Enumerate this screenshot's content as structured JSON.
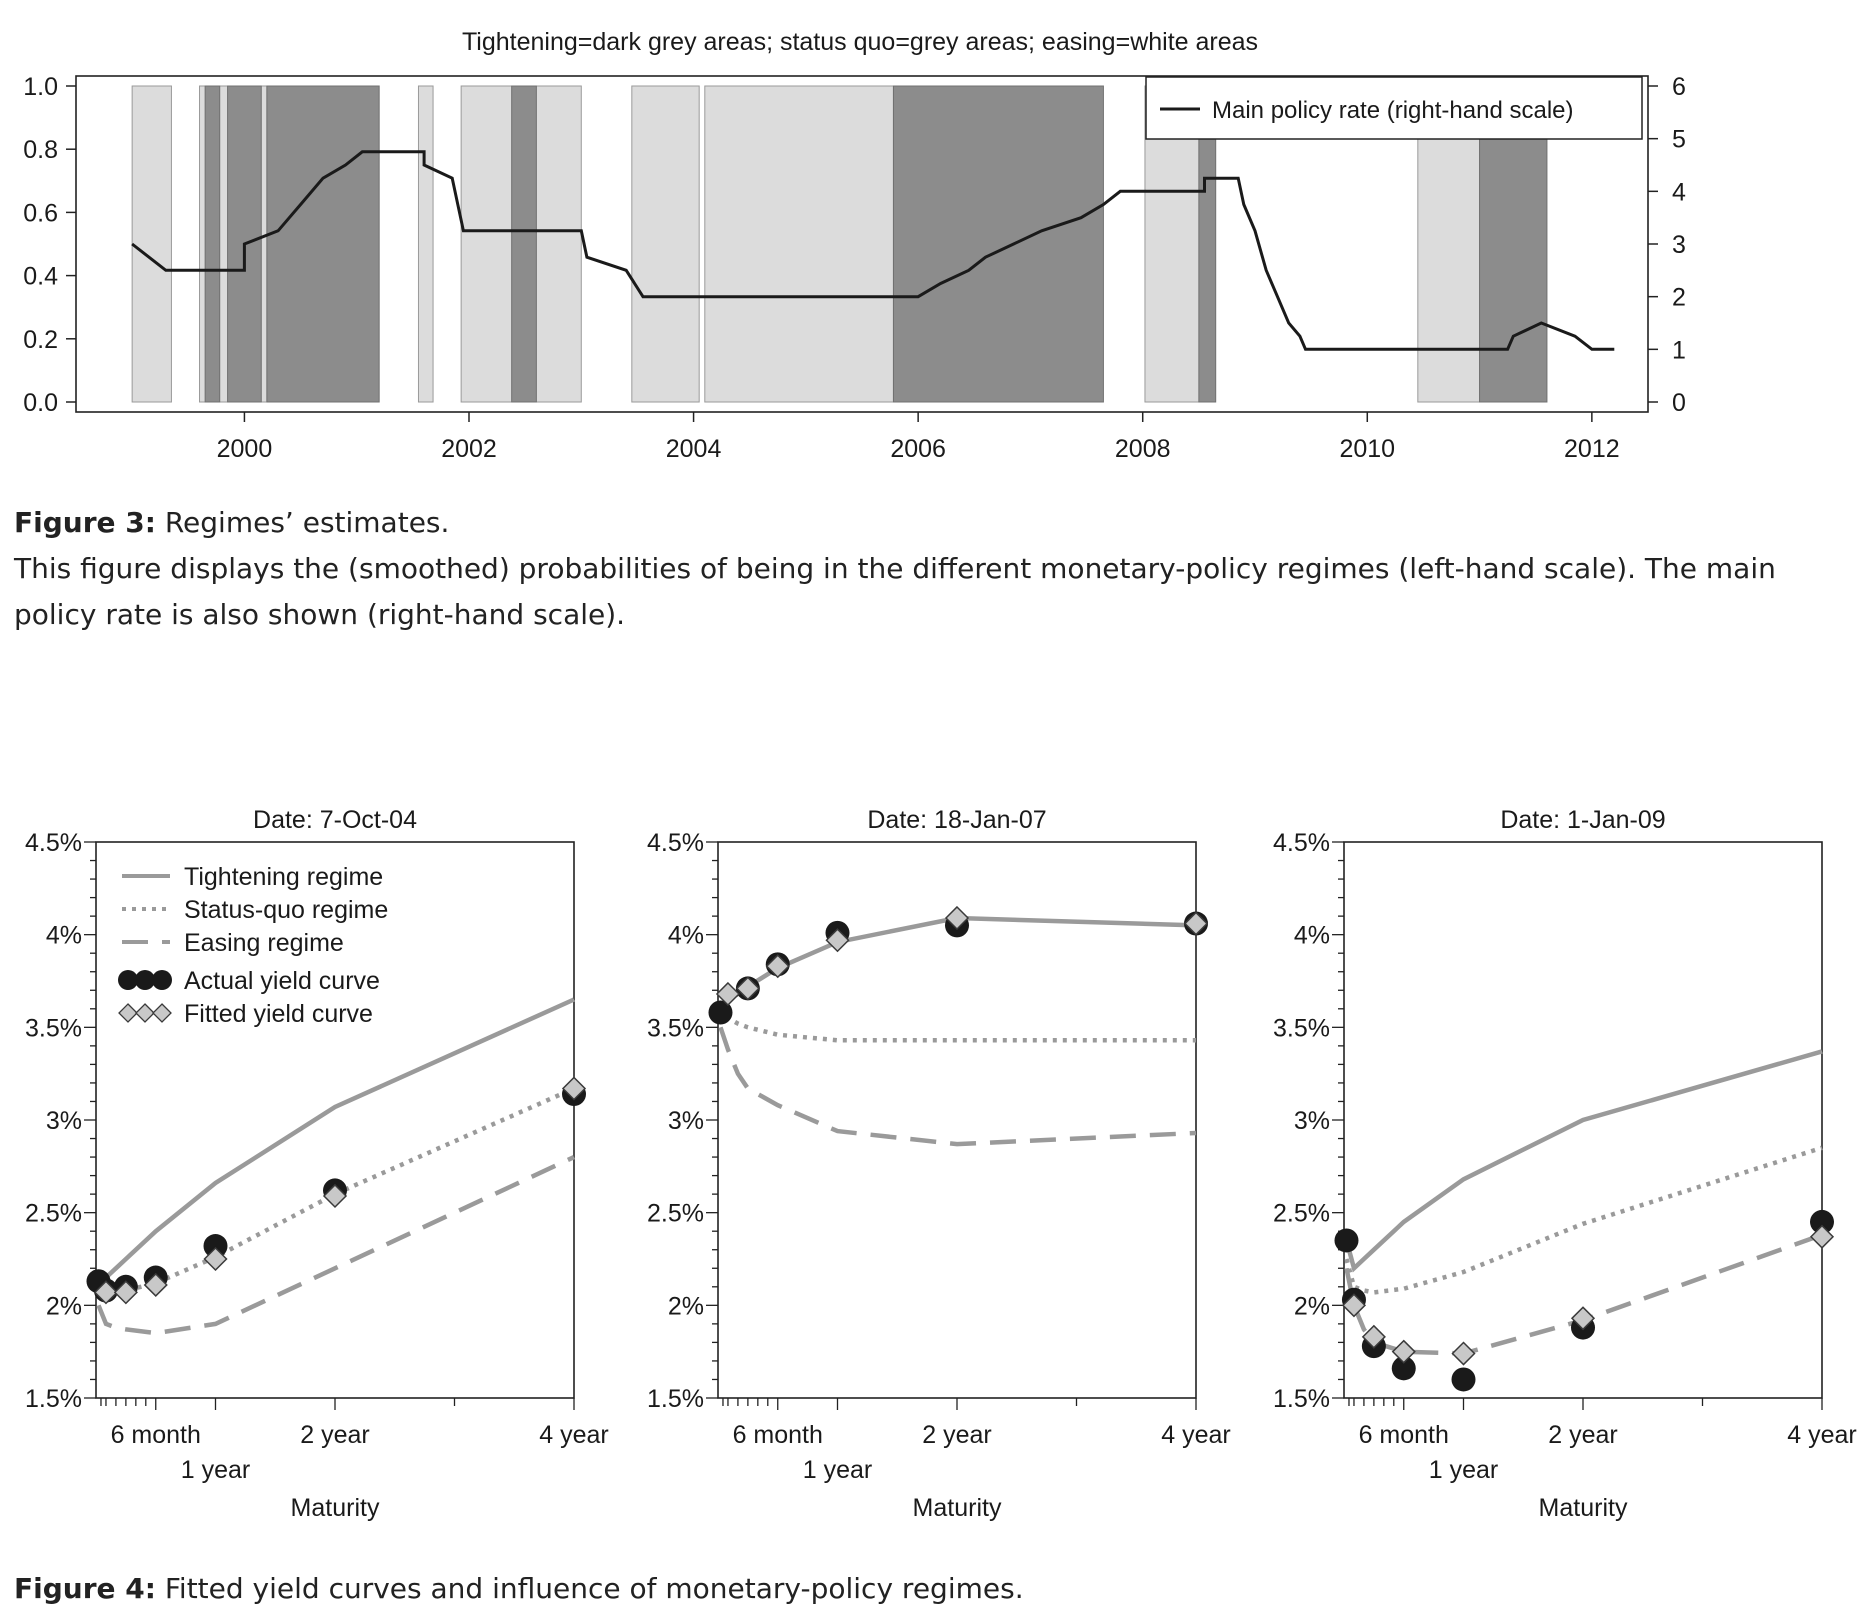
{
  "figure3": {
    "label": "Figure 3:",
    "title": "Regimes’ estimates.",
    "description": "This figure displays the (smoothed) probabilities of being in the different monetary-policy regimes (left-hand scale). The main policy rate is also shown (right-hand scale).",
    "chart_data": {
      "type": "area",
      "title": "Tightening=dark grey areas; status quo=grey areas; easing=white areas",
      "xlim": [
        1998.5,
        2012.5
      ],
      "x_ticks": [
        "2000",
        "2002",
        "2004",
        "2006",
        "2008",
        "2010",
        "2012"
      ],
      "x_tick_values": [
        2000,
        2002,
        2004,
        2006,
        2008,
        2010,
        2012
      ],
      "ylim_left": [
        0,
        1
      ],
      "y_ticks_left": [
        "0.0",
        "0.2",
        "0.4",
        "0.6",
        "0.8",
        "1.0"
      ],
      "ylim_right": [
        0,
        6
      ],
      "y_ticks_right": [
        "0",
        "1",
        "2",
        "3",
        "4",
        "5",
        "6"
      ],
      "legend": {
        "entries": [
          "Main policy rate (right-hand scale)"
        ],
        "position": "top-right"
      },
      "regimes": {
        "status_quo": [
          [
            1999.0,
            1999.35
          ],
          [
            1999.6,
            2000.2
          ],
          [
            2000.25,
            2000.5
          ],
          [
            2001.55,
            2001.68
          ],
          [
            2001.93,
            2002.48
          ],
          [
            2002.48,
            2003.0
          ],
          [
            2003.45,
            2004.05
          ],
          [
            2004.1,
            2005.78
          ],
          [
            2008.02,
            2008.6
          ],
          [
            2010.45,
            2011.0
          ]
        ],
        "tightening": [
          [
            1999.65,
            1999.78
          ],
          [
            1999.85,
            2000.15
          ],
          [
            2000.2,
            2001.2
          ],
          [
            2002.38,
            2002.6
          ],
          [
            2005.78,
            2007.65
          ],
          [
            2008.5,
            2008.65
          ],
          [
            2011.0,
            2011.6
          ]
        ]
      },
      "series": [
        {
          "name": "Main policy rate (right-hand scale)",
          "points": [
            [
              1999.0,
              3.0
            ],
            [
              1999.3,
              2.5
            ],
            [
              2000.0,
              2.5
            ],
            [
              2000.0,
              3.0
            ],
            [
              2000.3,
              3.25
            ],
            [
              2000.4,
              3.5
            ],
            [
              2000.5,
              3.75
            ],
            [
              2000.7,
              4.25
            ],
            [
              2000.9,
              4.5
            ],
            [
              2001.05,
              4.75
            ],
            [
              2001.6,
              4.75
            ],
            [
              2001.6,
              4.5
            ],
            [
              2001.85,
              4.25
            ],
            [
              2001.9,
              3.75
            ],
            [
              2001.95,
              3.25
            ],
            [
              2003.0,
              3.25
            ],
            [
              2003.05,
              2.75
            ],
            [
              2003.4,
              2.5
            ],
            [
              2003.55,
              2.0
            ],
            [
              2006.0,
              2.0
            ],
            [
              2006.2,
              2.25
            ],
            [
              2006.45,
              2.5
            ],
            [
              2006.6,
              2.75
            ],
            [
              2006.85,
              3.0
            ],
            [
              2007.1,
              3.25
            ],
            [
              2007.45,
              3.5
            ],
            [
              2007.65,
              3.75
            ],
            [
              2007.8,
              4.0
            ],
            [
              2008.55,
              4.0
            ],
            [
              2008.55,
              4.25
            ],
            [
              2008.85,
              4.25
            ],
            [
              2008.9,
              3.75
            ],
            [
              2009.0,
              3.25
            ],
            [
              2009.1,
              2.5
            ],
            [
              2009.2,
              2.0
            ],
            [
              2009.3,
              1.5
            ],
            [
              2009.4,
              1.25
            ],
            [
              2009.45,
              1.0
            ],
            [
              2011.25,
              1.0
            ],
            [
              2011.3,
              1.25
            ],
            [
              2011.55,
              1.5
            ],
            [
              2011.85,
              1.25
            ],
            [
              2012.0,
              1.0
            ],
            [
              2012.2,
              1.0
            ]
          ]
        }
      ]
    }
  },
  "figure4": {
    "label": "Figure 4:",
    "title": "Fitted yield curves and influence of monetary-policy regimes.",
    "chart_data": [
      {
        "type": "line",
        "title": "Date: 7-Oct-04",
        "xlabel": "Maturity",
        "ylim": [
          1.5,
          4.5
        ],
        "y_ticks": [
          "1.5%",
          "2%",
          "2.5%",
          "3%",
          "3.5%",
          "4%",
          "4.5%"
        ],
        "x_ticks": [
          {
            "label": "6 month",
            "months": 6
          },
          {
            "label": "1 year",
            "months": 12
          },
          {
            "label": "2 year",
            "months": 24
          },
          {
            "label": "4 year",
            "months": 48
          }
        ],
        "legend": {
          "entries": [
            "Tightening regime",
            "Status-quo regime",
            "Easing regime",
            "Actual yield curve",
            "Fitted yield curve"
          ],
          "position": "top-left"
        },
        "series": [
          {
            "name": "Tightening regime",
            "x": [
              0.25,
              1,
              2,
              3,
              6,
              12,
              24,
              48
            ],
            "y": [
              2.1,
              2.15,
              2.2,
              2.25,
              2.4,
              2.66,
              3.07,
              3.65
            ]
          },
          {
            "name": "Status-quo regime",
            "x": [
              0.25,
              1,
              2,
              3,
              6,
              12,
              24,
              48
            ],
            "y": [
              2.05,
              2.06,
              2.07,
              2.08,
              2.12,
              2.26,
              2.6,
              3.17
            ]
          },
          {
            "name": "Easing regime",
            "x": [
              0.25,
              1,
              2,
              3,
              6,
              12,
              24,
              48
            ],
            "y": [
              2.0,
              1.9,
              1.88,
              1.87,
              1.85,
              1.9,
              2.2,
              2.8
            ]
          },
          {
            "name": "Actual yield curve",
            "x": [
              0.25,
              1,
              3,
              6,
              12,
              24,
              48
            ],
            "y": [
              2.13,
              2.08,
              2.1,
              2.15,
              2.32,
              2.62,
              3.14
            ]
          },
          {
            "name": "Fitted yield curve",
            "x": [
              1,
              3,
              6,
              12,
              24,
              48
            ],
            "y": [
              2.07,
              2.07,
              2.11,
              2.25,
              2.59,
              3.17
            ]
          }
        ]
      },
      {
        "type": "line",
        "title": "Date: 18-Jan-07",
        "xlabel": "Maturity",
        "ylim": [
          1.5,
          4.5
        ],
        "y_ticks": [
          "1.5%",
          "2%",
          "2.5%",
          "3%",
          "3.5%",
          "4%",
          "4.5%"
        ],
        "x_ticks": [
          {
            "label": "6 month",
            "months": 6
          },
          {
            "label": "1 year",
            "months": 12
          },
          {
            "label": "2 year",
            "months": 24
          },
          {
            "label": "4 year",
            "months": 48
          }
        ],
        "series": [
          {
            "name": "Tightening regime",
            "x": [
              0.25,
              1,
              2,
              3,
              6,
              12,
              24,
              48
            ],
            "y": [
              3.6,
              3.65,
              3.68,
              3.72,
              3.82,
              3.96,
              4.09,
              4.05
            ]
          },
          {
            "name": "Status-quo regime",
            "x": [
              0.25,
              1,
              2,
              3,
              6,
              12,
              24,
              48
            ],
            "y": [
              3.6,
              3.55,
              3.52,
              3.5,
              3.46,
              3.43,
              3.43,
              3.43
            ]
          },
          {
            "name": "Easing regime",
            "x": [
              0.25,
              1,
              2,
              3,
              6,
              12,
              24,
              48
            ],
            "y": [
              3.5,
              3.38,
              3.25,
              3.17,
              3.08,
              2.94,
              2.87,
              2.93
            ]
          },
          {
            "name": "Actual yield curve",
            "x": [
              0.25,
              3,
              6,
              12,
              24,
              48
            ],
            "y": [
              3.58,
              3.71,
              3.84,
              4.01,
              4.05,
              4.06
            ]
          },
          {
            "name": "Fitted yield curve",
            "x": [
              1,
              3,
              6,
              12,
              24,
              48
            ],
            "y": [
              3.68,
              3.71,
              3.83,
              3.97,
              4.09,
              4.06
            ]
          }
        ]
      },
      {
        "type": "line",
        "title": "Date: 1-Jan-09",
        "xlabel": "Maturity",
        "ylim": [
          1.5,
          4.5
        ],
        "y_ticks": [
          "1.5%",
          "2%",
          "2.5%",
          "3%",
          "3.5%",
          "4%",
          "4.5%"
        ],
        "x_ticks": [
          {
            "label": "6 month",
            "months": 6
          },
          {
            "label": "1 year",
            "months": 12
          },
          {
            "label": "2 year",
            "months": 24
          },
          {
            "label": "4 year",
            "months": 48
          }
        ],
        "series": [
          {
            "name": "Tightening regime",
            "x": [
              0.25,
              1,
              2,
              3,
              6,
              12,
              24,
              48
            ],
            "y": [
              2.35,
              2.2,
              2.25,
              2.3,
              2.45,
              2.68,
              3.0,
              3.37
            ]
          },
          {
            "name": "Status-quo regime",
            "x": [
              0.25,
              1,
              2,
              3,
              6,
              12,
              24,
              48
            ],
            "y": [
              2.25,
              2.1,
              2.08,
              2.07,
              2.09,
              2.18,
              2.44,
              2.85
            ]
          },
          {
            "name": "Easing regime",
            "x": [
              0.25,
              1,
              2,
              3,
              6,
              12,
              24,
              48
            ],
            "y": [
              2.2,
              2.0,
              1.87,
              1.8,
              1.75,
              1.74,
              1.92,
              2.38
            ]
          },
          {
            "name": "Actual yield curve",
            "x": [
              0.25,
              1,
              3,
              6,
              12,
              24,
              48
            ],
            "y": [
              2.35,
              2.03,
              1.78,
              1.66,
              1.6,
              1.88,
              2.45
            ]
          },
          {
            "name": "Fitted yield curve",
            "x": [
              1,
              3,
              6,
              12,
              24,
              48
            ],
            "y": [
              2.0,
              1.83,
              1.75,
              1.74,
              1.93,
              2.37
            ]
          }
        ]
      }
    ]
  }
}
